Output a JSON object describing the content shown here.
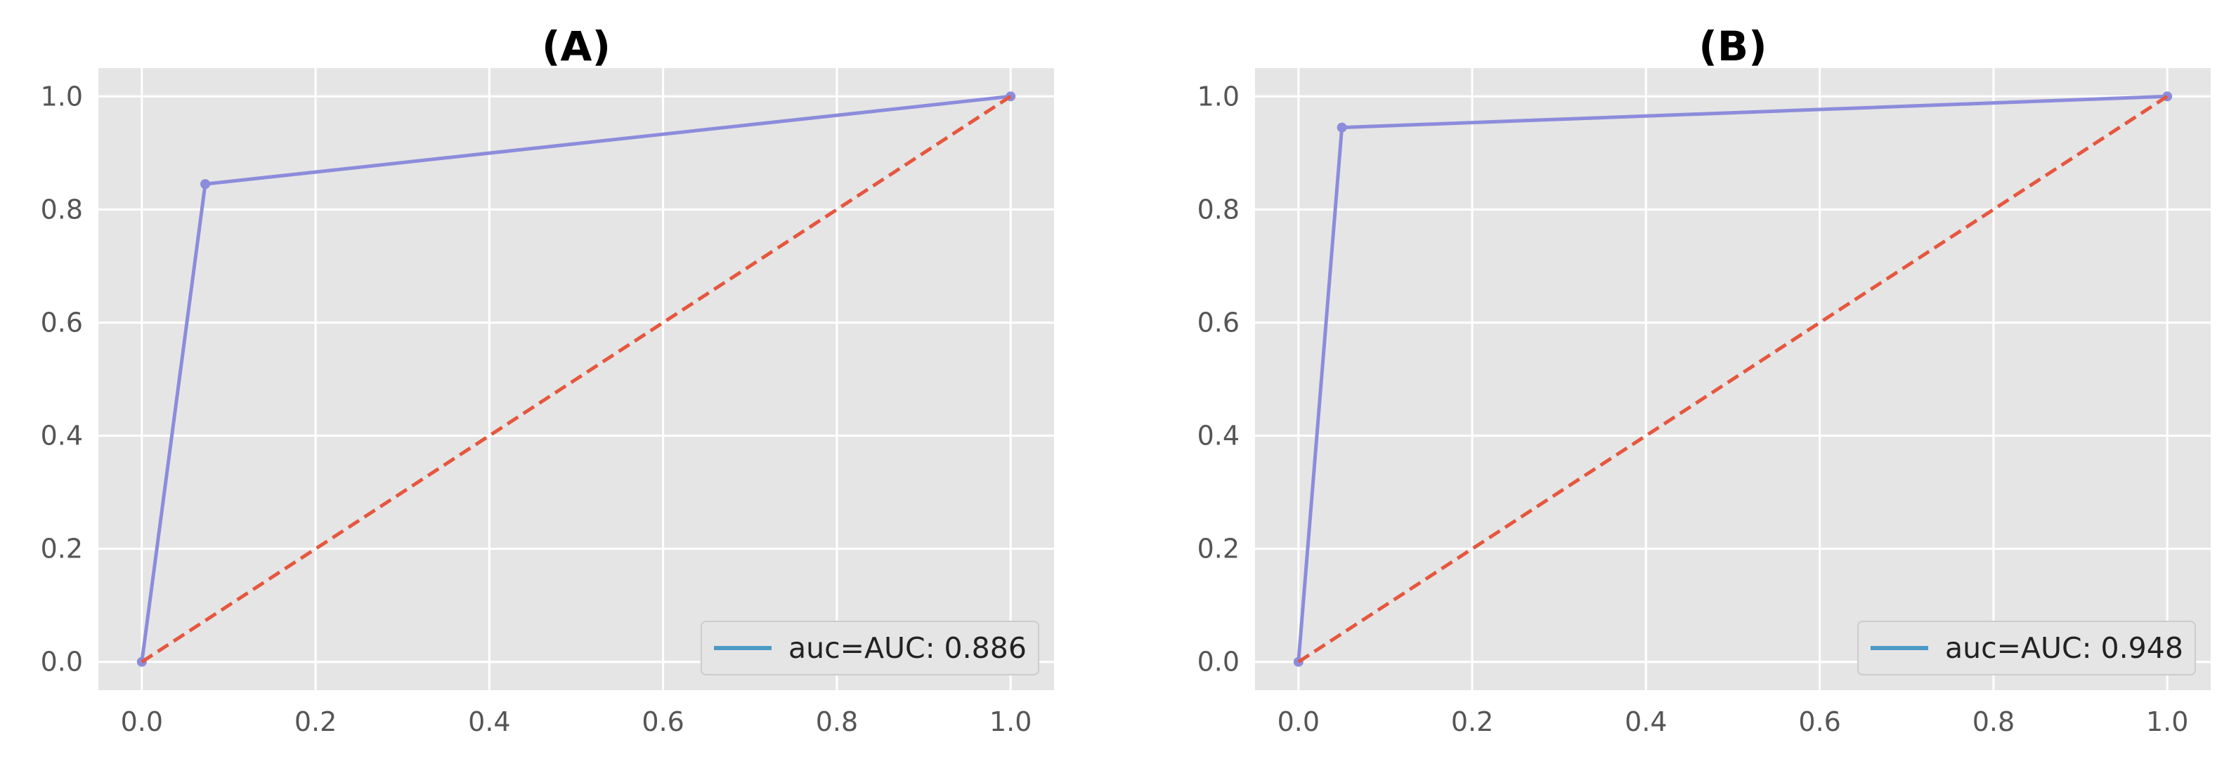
{
  "chart_data": [
    {
      "type": "line",
      "title": "(A)",
      "xlabel": "",
      "ylabel": "",
      "xlim": [
        -0.05,
        1.05
      ],
      "ylim": [
        -0.05,
        1.05
      ],
      "x_ticks": [
        "0.0",
        "0.2",
        "0.4",
        "0.6",
        "0.8",
        "1.0"
      ],
      "y_ticks": [
        "0.0",
        "0.2",
        "0.4",
        "0.6",
        "0.8",
        "1.0"
      ],
      "grid": true,
      "legend_position": "lower-right",
      "series": [
        {
          "name": "auc=AUC: 0.886",
          "style": "solid-with-markers",
          "color": "#8c8cdc",
          "legend_color": "#4c9ac6",
          "x": [
            0.0,
            0.073,
            1.0
          ],
          "y": [
            0.0,
            0.845,
            1.0
          ]
        },
        {
          "style": "dashed",
          "color": "#e5573e",
          "x": [
            0.0,
            1.0
          ],
          "y": [
            0.0,
            1.0
          ]
        }
      ]
    },
    {
      "type": "line",
      "title": "(B)",
      "xlabel": "",
      "ylabel": "",
      "xlim": [
        -0.05,
        1.05
      ],
      "ylim": [
        -0.05,
        1.05
      ],
      "x_ticks": [
        "0.0",
        "0.2",
        "0.4",
        "0.6",
        "0.8",
        "1.0"
      ],
      "y_ticks": [
        "0.0",
        "0.2",
        "0.4",
        "0.6",
        "0.8",
        "1.0"
      ],
      "grid": true,
      "legend_position": "lower-right",
      "series": [
        {
          "name": "auc=AUC: 0.948",
          "style": "solid-with-markers",
          "color": "#8c8cdc",
          "legend_color": "#4c9ac6",
          "x": [
            0.0,
            0.05,
            1.0
          ],
          "y": [
            0.0,
            0.945,
            1.0
          ]
        },
        {
          "style": "dashed",
          "color": "#e5573e",
          "x": [
            0.0,
            1.0
          ],
          "y": [
            0.0,
            1.0
          ]
        }
      ]
    }
  ],
  "colors": {
    "plot_background": "#e5e5e5",
    "grid": "#ffffff",
    "tick_text": "#555555",
    "legend_background": "#e5e5e5",
    "legend_border": "#cccccc"
  }
}
